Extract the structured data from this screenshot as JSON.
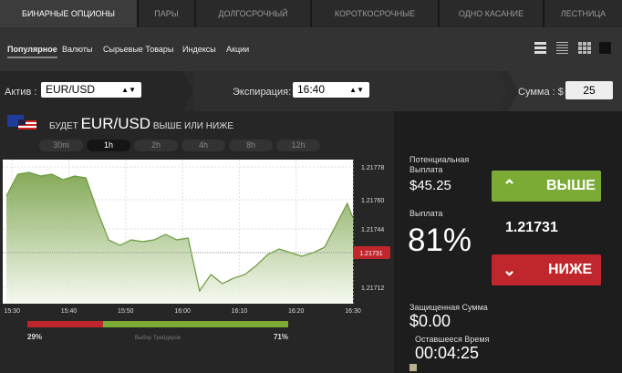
{
  "tabs": [
    "БИНАРНЫЕ ОПЦИОНЫ",
    "ПАРЫ",
    "ДОЛГОСРОЧНЫЙ",
    "КОРОТКОСРОЧНЫЕ",
    "ОДНО КАСАНИЕ",
    "ЛЕСТНИЦА"
  ],
  "active_tab": 0,
  "subnav": [
    "Популярное",
    "Валюты",
    "Сырьевые Товары",
    "Индексы",
    "Акции"
  ],
  "active_subnav": 0,
  "controls": {
    "asset_label": "Актив :",
    "asset": "EUR/USD",
    "expiry_label": "Экспирация:",
    "expiry": "16:40",
    "amount_label": "Сумма : $",
    "amount": "25"
  },
  "chart_header": {
    "prefix": "БУДЕТ",
    "asset": "EUR/USD",
    "suffix": "ВЫШЕ ИЛИ НИЖЕ"
  },
  "timeframes": [
    "30m",
    "1h",
    "2h",
    "4h",
    "8h",
    "12h"
  ],
  "active_timeframe": 1,
  "chart": {
    "type": "line",
    "color": "#6a9a3c",
    "grid": true,
    "x": [
      "15:29",
      "15:31",
      "15:33",
      "15:35",
      "15:37",
      "15:39",
      "15:41",
      "15:43",
      "15:45",
      "15:47",
      "15:49",
      "15:51",
      "15:53",
      "15:55",
      "15:57",
      "15:59",
      "16:01",
      "16:03",
      "16:05",
      "16:07",
      "16:09",
      "16:11",
      "16:13",
      "16:15",
      "16:17",
      "16:19",
      "16:21",
      "16:23",
      "16:25",
      "16:27",
      "16:29",
      "16:30"
    ],
    "values": [
      1.21762,
      1.21774,
      1.21775,
      1.21773,
      1.21774,
      1.21771,
      1.21773,
      1.21772,
      1.21754,
      1.21738,
      1.21735,
      1.21738,
      1.21737,
      1.21738,
      1.21741,
      1.21738,
      1.21739,
      1.2171,
      1.21719,
      1.21714,
      1.21717,
      1.21719,
      1.21724,
      1.2173,
      1.21733,
      1.21731,
      1.21729,
      1.21731,
      1.21734,
      1.21746,
      1.21758,
      1.2175
    ],
    "xlim": [
      "15:29",
      "16:30"
    ],
    "xticks": [
      "15:30",
      "15:40",
      "15:50",
      "16:00",
      "16:10",
      "16:20",
      "16:30"
    ],
    "ylim": [
      1.21703,
      1.21782
    ],
    "yticks": [
      1.21778,
      {
        "value": 1.2176,
        "label": "1.21760"
      },
      1.21744,
      1.21712
    ],
    "current": 1.21731
  },
  "traders": {
    "label": "Выбор Трейдеров",
    "values": [
      29,
      71
    ],
    "value_labels": [
      "29%",
      "71%"
    ],
    "colors": [
      "#c0272d",
      "#7cab35"
    ]
  },
  "panel": {
    "potential_label": "Потенциальная Выплата",
    "potential": "$45.25",
    "payout_label": "Выплата",
    "payout": "81%",
    "call": "ВЫШЕ",
    "put": "НИЖЕ",
    "protected_label": "Защищенная Сумма",
    "protected": "$0.00",
    "time_label": "Оставшееся Время",
    "time": "00:04:25"
  }
}
